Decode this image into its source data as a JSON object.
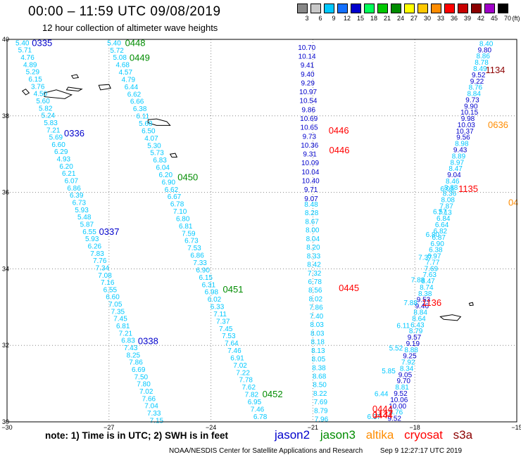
{
  "title": "00:00 – 11:59 UTC 09/08/2019",
  "subtitle": "12 hour collection of altimeter wave heights",
  "scale": {
    "unit": "(ft)",
    "steps": [
      {
        "label": "3",
        "color": "#888888"
      },
      {
        "label": "6",
        "color": "#c8c8c8"
      },
      {
        "label": "9",
        "color": "#00c8ff"
      },
      {
        "label": "12",
        "color": "#1470ff"
      },
      {
        "label": "15",
        "color": "#0000cc"
      },
      {
        "label": "18",
        "color": "#00ff5a"
      },
      {
        "label": "21",
        "color": "#00c800"
      },
      {
        "label": "24",
        "color": "#008c00"
      },
      {
        "label": "27",
        "color": "#ffff00"
      },
      {
        "label": "30",
        "color": "#ffc800"
      },
      {
        "label": "33",
        "color": "#ff8c00"
      },
      {
        "label": "36",
        "color": "#ff0000"
      },
      {
        "label": "39",
        "color": "#c80000"
      },
      {
        "label": "42",
        "color": "#8c0000"
      },
      {
        "label": "45",
        "color": "#a000c8"
      },
      {
        "label": "70",
        "color": "#000000"
      }
    ]
  },
  "axes": {
    "lon_labels": [
      "−30",
      "−27",
      "−24",
      "−21",
      "−18",
      "−15"
    ],
    "lat_labels": [
      "40",
      "38",
      "36",
      "34",
      "32",
      "30"
    ]
  },
  "colors": {
    "wave_low": "#00c8ff",
    "wave_mid": "#0000cc",
    "jason2": "#0000cc",
    "jason3": "#008c00",
    "altika": "#ff8c00",
    "cryosat": "#ff0000",
    "s3a": "#8c0000",
    "grid": "#888888",
    "land": "#000000"
  },
  "note": "note:  1) Time is in UTC;  2) SWH is in feet",
  "legend": {
    "jason2": "jason2",
    "jason3": "jason3",
    "altika": "altika",
    "cryosat": "cryosat",
    "s3a": "s3a"
  },
  "credit": {
    "org": "NOAA/NESDIS Center for Satellite Applications and Research",
    "generated": "Sep  9 12:27:17 UTC 2019"
  },
  "passes": [
    {
      "name": "track-a",
      "sat": "jason2",
      "lon0": -29.55,
      "lat0": 39.92,
      "lon1": -25.6,
      "lat1": 30.05,
      "values": [
        "5.40",
        "5.71",
        "4.76",
        "4.89",
        "5.29",
        "6.15",
        "3.76",
        "4.50",
        "5.60",
        "5.82",
        "5.24",
        "5.83",
        "7.21",
        "5.69",
        "6.60",
        "6.29",
        "4.93",
        "6.20",
        "6.21",
        "6.07",
        "6.86",
        "6.39",
        "6.73",
        "5.93",
        "5.48",
        "5.87",
        "6.55",
        "5.93",
        "6.26",
        "7.83",
        "7.76",
        "7.34",
        "7.08",
        "7.16",
        "6.55",
        "6.60",
        "7.05",
        "7.35",
        "7.45",
        "6.81",
        "7.21",
        "6.83",
        "7.43",
        "8.25",
        "7.86",
        "6.69",
        "7.50",
        "7.80",
        "7.02",
        "7.66",
        "7.04",
        "7.33",
        "7.15"
      ],
      "times": [
        {
          "label": "0335",
          "frac": 0.0,
          "dx": 28
        },
        {
          "label": "0336",
          "frac": 0.24,
          "dx": 28
        },
        {
          "label": "0337",
          "frac": 0.5,
          "dx": 28
        },
        {
          "label": "0338",
          "frac": 0.79,
          "dx": 28
        }
      ]
    },
    {
      "name": "track-b",
      "sat": "jason3",
      "lon0": -26.85,
      "lat0": 39.92,
      "lon1": -22.55,
      "lat1": 30.15,
      "values": [
        "5.40",
        "5.72",
        "5.08",
        "4.68",
        "4.57",
        "4.79",
        "6.44",
        "6.62",
        "6.66",
        "6.38",
        "6.11",
        "5.68",
        "6.50",
        "4.07",
        "5.30",
        "5.73",
        "6.83",
        "6.04",
        "6.20",
        "6.90",
        "6.62",
        "6.67",
        "6.78",
        "7.10",
        "6.80",
        "6.81",
        "7.59",
        "6.73",
        "7.53",
        "6.86",
        "7.33",
        "6.90",
        "6.15",
        "6.31",
        "6.98",
        "6.02",
        "6.33",
        "7.11",
        "7.37",
        "7.45",
        "7.53",
        "7.64",
        "7.46",
        "6.91",
        "7.02",
        "7.22",
        "7.78",
        "7.62",
        "7.82",
        "6.95",
        "7.46",
        "6.78"
      ],
      "times": [
        {
          "label": "0448",
          "frac": 0.0,
          "dx": 30
        },
        {
          "label": "0449",
          "frac": 0.04,
          "dx": 28
        },
        {
          "label": "0450",
          "frac": 0.36,
          "dx": 30
        },
        {
          "label": "0451",
          "frac": 0.66,
          "dx": 32
        },
        {
          "label": "0452",
          "frac": 0.94,
          "dx": 30
        }
      ]
    },
    {
      "name": "track-c",
      "sat": "cryosat",
      "lon0": -21.18,
      "lat0": 39.8,
      "lon1": -21.05,
      "lat1": 35.85,
      "values": [
        "10.70",
        "10.14",
        "9.41",
        "9.40",
        "9.29",
        "10.97",
        "10.54",
        "9.86",
        "10.69",
        "10.65",
        "9.73",
        "10.36",
        "9.31",
        "10.09",
        "10.04",
        "10.40",
        "9.71",
        "9.07"
      ],
      "times": [
        {
          "label": "0446",
          "frac": 0.55,
          "dx": 42
        },
        {
          "label": "0446",
          "frac": 0.68,
          "dx": 42
        }
      ]
    },
    {
      "name": "track-d",
      "sat": "cryosat",
      "lon0": -21.05,
      "lat0": 35.7,
      "lon1": -20.75,
      "lat1": 30.08,
      "values": [
        "8.48",
        "8.28",
        "8.67",
        "8.00",
        "8.04",
        "8.20",
        "8.33",
        "8.42",
        "7.32",
        "6.78",
        "8.56",
        "8.02",
        "7.86",
        "7.40",
        "8.03",
        "8.03",
        "8.18",
        "8.13",
        "8.05",
        "8.38",
        "8.68",
        "8.50",
        "8.22",
        "7.69",
        "8.79",
        "7.96"
      ],
      "times": [
        {
          "label": "0445",
          "frac": 0.39,
          "dx": 48
        }
      ]
    },
    {
      "name": "track-e",
      "sat": "s3a",
      "lon0": -15.9,
      "lat0": 39.9,
      "lon1": -18.6,
      "lat1": 30.1,
      "values": [
        "8.40",
        "9.80",
        "8.86",
        "8.78",
        "8.49",
        "9.52",
        "9.22",
        "8.76",
        "8.84",
        "9.73",
        "9.90",
        "10.15",
        "9.98",
        "10.03",
        "10.37",
        "9.56",
        "8.98",
        "9.43",
        "8.89",
        "8.97",
        "8.47",
        "9.04",
        "8.46",
        "8.38",
        "8.36",
        "8.08",
        "7.87",
        "7.13",
        "6.84",
        "6.64",
        "6.82",
        "6.87",
        "6.90",
        "6.38",
        "6.97",
        "7.77",
        "7.69",
        "7.63",
        "8.47",
        "8.74",
        "8.38",
        "9.53",
        "9.46",
        "8.84",
        "8.64",
        "6.43",
        "8.79",
        "9.57",
        "9.19",
        "8.88",
        "9.25",
        "7.92",
        "8.34",
        "9.05",
        "9.70",
        "8.81",
        "9.52",
        "10.06",
        "10.00",
        "8.76",
        "9.52"
      ],
      "times": [
        {
          "label": "1134",
          "frac": 0.07,
          "dx": 22
        }
      ]
    },
    {
      "name": "track-f",
      "sat": "cryosat",
      "lon0": -17.05,
      "lat0": 36.1,
      "lon1": -19.2,
      "lat1": 30.15,
      "values": [
        "6.05",
        "6.57",
        "6.80",
        "7.37",
        "7.88",
        "7.88",
        "6.11",
        "5.52",
        "5.85",
        "6.44",
        "6.37"
      ],
      "times": [
        {
          "label": "1135",
          "frac": 0.0,
          "dx": 30
        },
        {
          "label": "1136",
          "frac": 0.5,
          "dx": 30
        },
        {
          "label": "1137",
          "frac": 0.99,
          "dx": 12
        }
      ]
    },
    {
      "name": "track-g",
      "sat": "altika",
      "lon0": -15.3,
      "lat0": 37.85,
      "lon1": -15.1,
      "lat1": 36.3,
      "values": [
        "0636"
      ],
      "times": []
    }
  ],
  "extra_labels": [
    {
      "label": "0444",
      "sat": "cryosat",
      "lon": -18.95,
      "lat": 30.35
    },
    {
      "label": "0444",
      "sat": "cryosat",
      "lon": -18.95,
      "lat": 30.18
    },
    {
      "label": "0636",
      "sat": "altika",
      "lon": -15.55,
      "lat": 37.78
    },
    {
      "label": "04",
      "sat": "altika",
      "lon": -15.1,
      "lat": 35.74
    }
  ],
  "islands": [
    {
      "name": "flores-island",
      "pts": [
        [
          -29.55,
          38.65
        ],
        [
          -29.45,
          38.7
        ],
        [
          -29.35,
          38.6
        ],
        [
          -29.45,
          38.55
        ]
      ]
    },
    {
      "name": "faial-pico-island",
      "pts": [
        [
          -28.9,
          38.6
        ],
        [
          -28.55,
          38.68
        ],
        [
          -28.1,
          38.55
        ],
        [
          -28.3,
          38.45
        ],
        [
          -28.9,
          38.5
        ]
      ]
    },
    {
      "name": "sao-jorge-island",
      "pts": [
        [
          -28.2,
          38.75
        ],
        [
          -27.8,
          38.7
        ],
        [
          -27.9,
          38.65
        ],
        [
          -28.25,
          38.68
        ]
      ]
    },
    {
      "name": "graciosa-island",
      "pts": [
        [
          -28.1,
          39.05
        ],
        [
          -27.95,
          39.08
        ],
        [
          -27.9,
          39.0
        ],
        [
          -28.05,
          38.98
        ]
      ]
    },
    {
      "name": "terceira-island",
      "pts": [
        [
          -27.3,
          38.8
        ],
        [
          -27.0,
          38.82
        ],
        [
          -26.95,
          38.72
        ],
        [
          -27.25,
          38.68
        ]
      ]
    },
    {
      "name": "sao-miguel-island",
      "pts": [
        [
          -25.85,
          37.9
        ],
        [
          -25.6,
          37.92
        ],
        [
          -25.3,
          37.85
        ],
        [
          -25.2,
          37.75
        ],
        [
          -25.6,
          37.75
        ],
        [
          -25.85,
          37.82
        ]
      ]
    },
    {
      "name": "santa-maria-island",
      "pts": [
        [
          -25.2,
          37.0
        ],
        [
          -25.05,
          37.02
        ],
        [
          -25.0,
          36.92
        ],
        [
          -25.15,
          36.92
        ]
      ]
    },
    {
      "name": "madeira-island",
      "pts": [
        [
          -17.25,
          32.75
        ],
        [
          -16.9,
          32.8
        ],
        [
          -16.65,
          32.75
        ],
        [
          -16.75,
          32.65
        ],
        [
          -17.15,
          32.68
        ]
      ]
    },
    {
      "name": "porto-santo-island",
      "pts": [
        [
          -16.4,
          33.1
        ],
        [
          -16.3,
          33.12
        ],
        [
          -16.28,
          33.05
        ],
        [
          -16.38,
          33.04
        ]
      ]
    }
  ]
}
